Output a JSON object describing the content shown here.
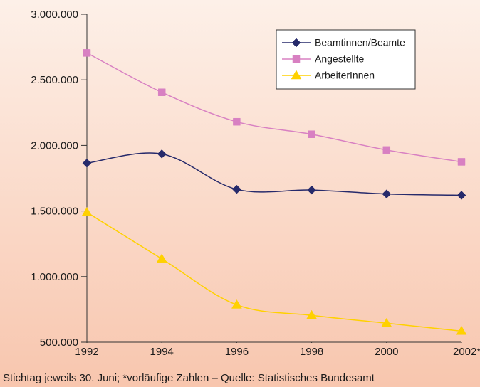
{
  "chart_data": {
    "type": "line",
    "footnote": "Stichtag jeweils 30. Juni; *vorläufige Zahlen – Quelle: Statistisches Bundesamt",
    "x": [
      1992,
      1994,
      1996,
      1998,
      2000,
      2002
    ],
    "xlim": [
      1992,
      2002
    ],
    "xticks": [
      1992,
      1994,
      1996,
      1998,
      2000,
      {
        "value": 2002,
        "label": "2002*"
      }
    ],
    "ylim": [
      500000,
      3000000
    ],
    "yticks": [
      {
        "value": 500000,
        "label": "500.000"
      },
      {
        "value": 1000000,
        "label": "1.000.000"
      },
      {
        "value": 1500000,
        "label": "1.500.000"
      },
      {
        "value": 2000000,
        "label": "2.000.000"
      },
      {
        "value": 2500000,
        "label": "2.500.000"
      },
      {
        "value": 3000000,
        "label": "3.000.000"
      }
    ],
    "legend": "upper right",
    "series": [
      {
        "name": "Beamtinnen/Beamte",
        "color": "#262a6b",
        "marker": "diamond",
        "values": [
          1865000,
          1935000,
          1665000,
          1660000,
          1630000,
          1620000
        ]
      },
      {
        "name": "Angestellte",
        "color": "#d880c2",
        "marker": "square",
        "values": [
          2705000,
          2405000,
          2180000,
          2085000,
          1965000,
          1875000
        ]
      },
      {
        "name": "ArbeiterInnen",
        "color": "#ffd100",
        "marker": "triangle",
        "values": [
          1490000,
          1135000,
          785000,
          705000,
          645000,
          585000
        ]
      }
    ]
  }
}
